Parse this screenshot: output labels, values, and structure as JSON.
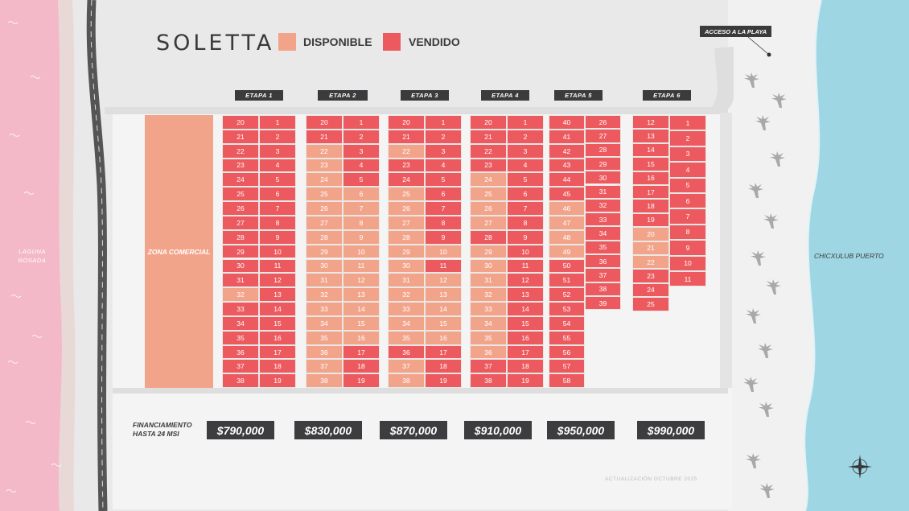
{
  "brand": {
    "logo_text": "SOLETTA"
  },
  "legend": [
    {
      "label": "DISPONIBLE",
      "color": "#f2a48b"
    },
    {
      "label": "VENDIDO",
      "color": "#ec5a5f"
    }
  ],
  "places": {
    "laguna": "LAGUNA ROSADA",
    "chicxulub": "CHICXULUB PUERTO",
    "acceso": "ACCESO A LA PLAYA",
    "zona_comercial": "ZONA COMERCIAL"
  },
  "financing": {
    "line1": "FINANCIAMIENTO",
    "line2": "HASTA 24 MSI"
  },
  "footer_note": "ACTUALIZACIÓN OCTUBRE 2025",
  "colors": {
    "vendido": "#ec5a5f",
    "disponible": "#f2a48b",
    "lagoon": "#f4b9c8",
    "sea": "#9fd6e3"
  },
  "etapas": [
    {
      "label": "ETAPA 1",
      "price": "$790,000",
      "columns": [
        {
          "lots": [
            "20",
            "21",
            "22",
            "23",
            "24",
            "25",
            "26",
            "27",
            "28",
            "29",
            "30",
            "31",
            "32",
            "33",
            "34",
            "35",
            "36",
            "37",
            "38"
          ],
          "status": [
            "v",
            "v",
            "v",
            "v",
            "v",
            "v",
            "v",
            "v",
            "v",
            "v",
            "v",
            "v",
            "d",
            "v",
            "v",
            "v",
            "v",
            "v",
            "v"
          ]
        },
        {
          "lots": [
            "1",
            "2",
            "3",
            "4",
            "5",
            "6",
            "7",
            "8",
            "9",
            "10",
            "11",
            "12",
            "13",
            "14",
            "15",
            "16",
            "17",
            "18",
            "19"
          ],
          "status": [
            "v",
            "v",
            "v",
            "v",
            "v",
            "v",
            "v",
            "v",
            "v",
            "v",
            "v",
            "v",
            "v",
            "v",
            "v",
            "v",
            "v",
            "v",
            "v"
          ]
        }
      ]
    },
    {
      "label": "ETAPA 2",
      "price": "$830,000",
      "columns": [
        {
          "lots": [
            "20",
            "21",
            "22",
            "23",
            "24",
            "25",
            "26",
            "27",
            "28",
            "29",
            "30",
            "31",
            "32",
            "33",
            "34",
            "35",
            "36",
            "37",
            "38"
          ],
          "status": [
            "v",
            "v",
            "d",
            "d",
            "d",
            "d",
            "d",
            "d",
            "d",
            "d",
            "d",
            "d",
            "d",
            "d",
            "d",
            "d",
            "d",
            "d",
            "d"
          ]
        },
        {
          "lots": [
            "1",
            "2",
            "3",
            "4",
            "5",
            "6",
            "7",
            "8",
            "9",
            "10",
            "11",
            "12",
            "13",
            "14",
            "15",
            "16",
            "17",
            "18",
            "19"
          ],
          "status": [
            "v",
            "v",
            "v",
            "v",
            "v",
            "d",
            "d",
            "d",
            "d",
            "d",
            "d",
            "d",
            "d",
            "d",
            "d",
            "d",
            "v",
            "v",
            "v"
          ]
        }
      ]
    },
    {
      "label": "ETAPA 3",
      "price": "$870,000",
      "columns": [
        {
          "lots": [
            "20",
            "21",
            "22",
            "23",
            "24",
            "25",
            "26",
            "27",
            "28",
            "29",
            "30",
            "31",
            "32",
            "33",
            "34",
            "35",
            "36",
            "37",
            "38"
          ],
          "status": [
            "v",
            "v",
            "d",
            "v",
            "v",
            "d",
            "d",
            "d",
            "d",
            "d",
            "d",
            "d",
            "d",
            "d",
            "d",
            "d",
            "v",
            "d",
            "d"
          ]
        },
        {
          "lots": [
            "1",
            "2",
            "3",
            "4",
            "5",
            "6",
            "7",
            "8",
            "9",
            "10",
            "11",
            "12",
            "13",
            "14",
            "15",
            "16",
            "17",
            "18",
            "19"
          ],
          "status": [
            "v",
            "v",
            "v",
            "v",
            "v",
            "v",
            "v",
            "v",
            "v",
            "d",
            "v",
            "d",
            "d",
            "d",
            "d",
            "d",
            "v",
            "v",
            "v"
          ]
        }
      ]
    },
    {
      "label": "ETAPA 4",
      "price": "$910,000",
      "columns": [
        {
          "lots": [
            "20",
            "21",
            "22",
            "23",
            "24",
            "25",
            "26",
            "27",
            "28",
            "29",
            "30",
            "31",
            "32",
            "33",
            "34",
            "35",
            "36",
            "37",
            "38"
          ],
          "status": [
            "v",
            "v",
            "v",
            "v",
            "d",
            "d",
            "d",
            "d",
            "v",
            "d",
            "d",
            "d",
            "d",
            "d",
            "d",
            "d",
            "d",
            "v",
            "v"
          ]
        },
        {
          "lots": [
            "1",
            "2",
            "3",
            "4",
            "5",
            "6",
            "7",
            "8",
            "9",
            "10",
            "11",
            "12",
            "13",
            "14",
            "15",
            "16",
            "17",
            "18",
            "19"
          ],
          "status": [
            "v",
            "v",
            "v",
            "v",
            "v",
            "v",
            "v",
            "v",
            "v",
            "v",
            "v",
            "v",
            "v",
            "v",
            "v",
            "v",
            "v",
            "v",
            "v"
          ]
        }
      ]
    },
    {
      "label": "ETAPA 5",
      "price": "$950,000",
      "columns": [
        {
          "lots": [
            "40",
            "41",
            "42",
            "43",
            "44",
            "45",
            "46",
            "47",
            "48",
            "49",
            "50",
            "51",
            "52",
            "53",
            "54",
            "55",
            "56",
            "57",
            "58"
          ],
          "status": [
            "v",
            "v",
            "v",
            "v",
            "v",
            "v",
            "d",
            "d",
            "d",
            "d",
            "v",
            "v",
            "v",
            "v",
            "v",
            "v",
            "v",
            "v",
            "v"
          ]
        },
        {
          "lots": [
            "26",
            "27",
            "28",
            "29",
            "30",
            "31",
            "32",
            "33",
            "34",
            "35",
            "36",
            "37",
            "38",
            "39"
          ],
          "status": [
            "v",
            "v",
            "v",
            "v",
            "v",
            "v",
            "v",
            "v",
            "v",
            "v",
            "v",
            "v",
            "v",
            "v"
          ]
        }
      ]
    },
    {
      "label": "ETAPA 6",
      "price": "$990,000",
      "columns": [
        {
          "lots": [
            "12",
            "13",
            "14",
            "15",
            "16",
            "17",
            "18",
            "19",
            "20",
            "21",
            "22",
            "23",
            "24",
            "25"
          ],
          "status": [
            "v",
            "v",
            "v",
            "v",
            "v",
            "v",
            "v",
            "v",
            "d",
            "d",
            "d",
            "v",
            "v",
            "v"
          ]
        },
        {
          "lots": [
            "1",
            "2",
            "3",
            "4",
            "5",
            "6",
            "7",
            "8",
            "9",
            "10",
            "11"
          ],
          "status": [
            "v",
            "v",
            "v",
            "v",
            "v",
            "v",
            "v",
            "v",
            "v",
            "v",
            "v"
          ]
        }
      ]
    }
  ]
}
